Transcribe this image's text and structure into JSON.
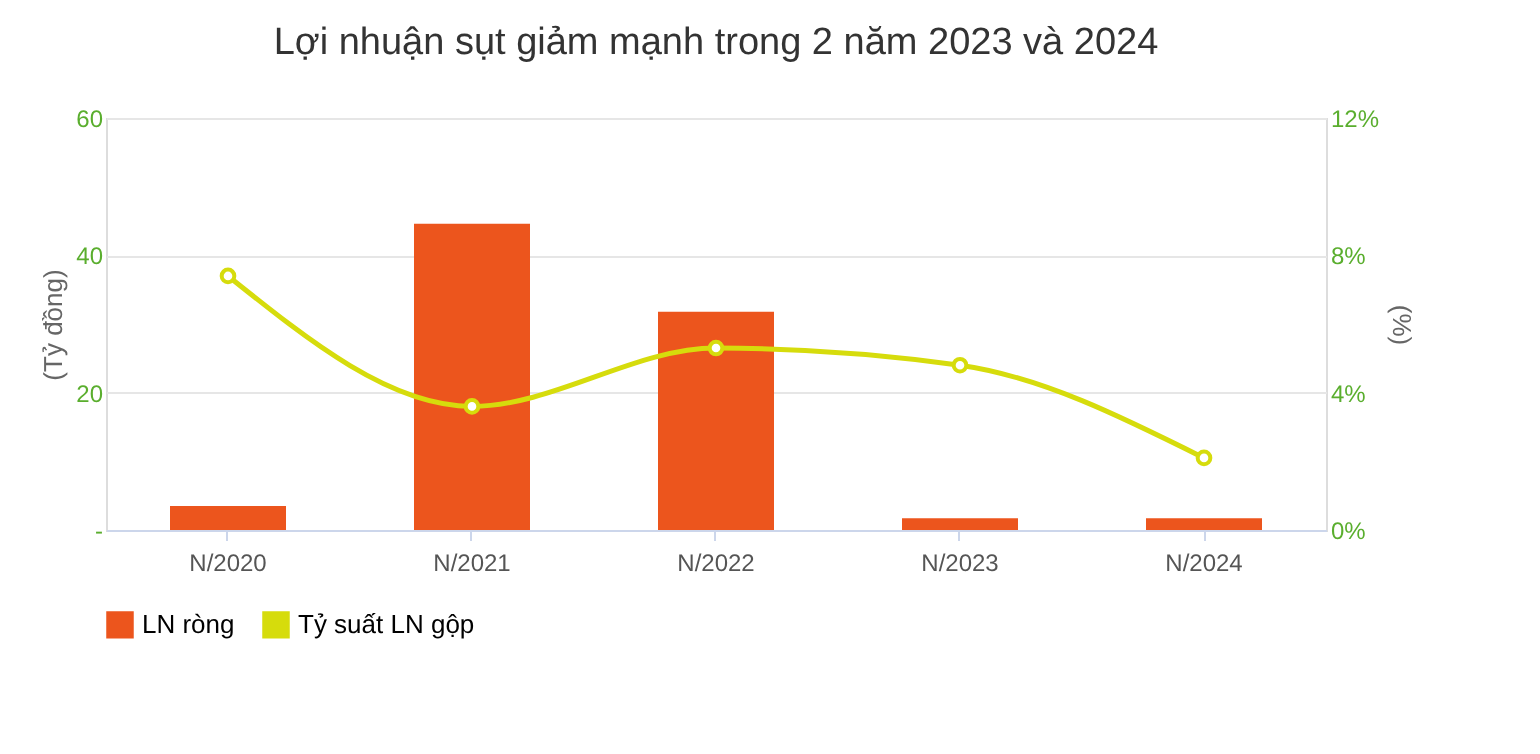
{
  "chart_data": {
    "type": "bar",
    "title": "Lợi nhuận sụt giảm mạnh trong 2 năm 2023 và 2024",
    "categories": [
      "N/2020",
      "N/2021",
      "N/2022",
      "N/2023",
      "N/2024"
    ],
    "series": [
      {
        "name": "LN ròng",
        "color": "#ec551d",
        "values": [
          3.5,
          44.6,
          31.8,
          1.7,
          1.7
        ]
      },
      {
        "name": "Tỷ suất LN gộp",
        "type": "line",
        "axis": "y2",
        "color": "#d6dc0c",
        "marker": "circle",
        "values": [
          7.4,
          3.6,
          5.3,
          4.8,
          2.1
        ]
      }
    ],
    "ylabel": "(Tỷ đồng)",
    "y2label": "(%)",
    "ylim": [
      0,
      60
    ],
    "yticks": [
      {
        "value": 0,
        "label": "-"
      },
      20,
      40,
      60
    ],
    "y2lim": [
      0,
      12
    ],
    "y2ticks": [
      {
        "value": 0,
        "label": "0%"
      },
      {
        "value": 4,
        "label": "4%"
      },
      {
        "value": 8,
        "label": "8%"
      },
      {
        "value": 12,
        "label": "12%"
      }
    ],
    "grid": "y",
    "legend": "bottom"
  }
}
